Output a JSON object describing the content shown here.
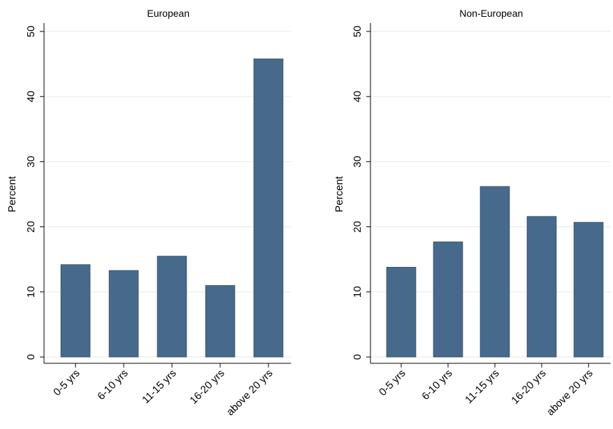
{
  "chart_data": [
    {
      "type": "bar",
      "title": "European",
      "y_label": "Percent",
      "categories": [
        "0-5 yrs",
        "6-10 yrs",
        "11-15 yrs",
        "16-20 yrs",
        "above 20 yrs"
      ],
      "values": [
        14.2,
        13.3,
        15.5,
        11.0,
        45.8
      ],
      "color": "#476a8c",
      "ylim": [
        0,
        50
      ],
      "yticks": [
        0,
        10,
        20,
        30,
        40,
        50
      ],
      "grid": true
    },
    {
      "type": "bar",
      "title": "Non-European",
      "y_label": "Percent",
      "categories": [
        "0-5 yrs",
        "6-10 yrs",
        "11-15 yrs",
        "16-20 yrs",
        "above 20 yrs"
      ],
      "values": [
        13.8,
        17.7,
        26.2,
        21.6,
        20.7
      ],
      "color": "#476a8c",
      "ylim": [
        0,
        50
      ],
      "yticks": [
        0,
        10,
        20,
        30,
        40,
        50
      ],
      "grid": true
    }
  ]
}
